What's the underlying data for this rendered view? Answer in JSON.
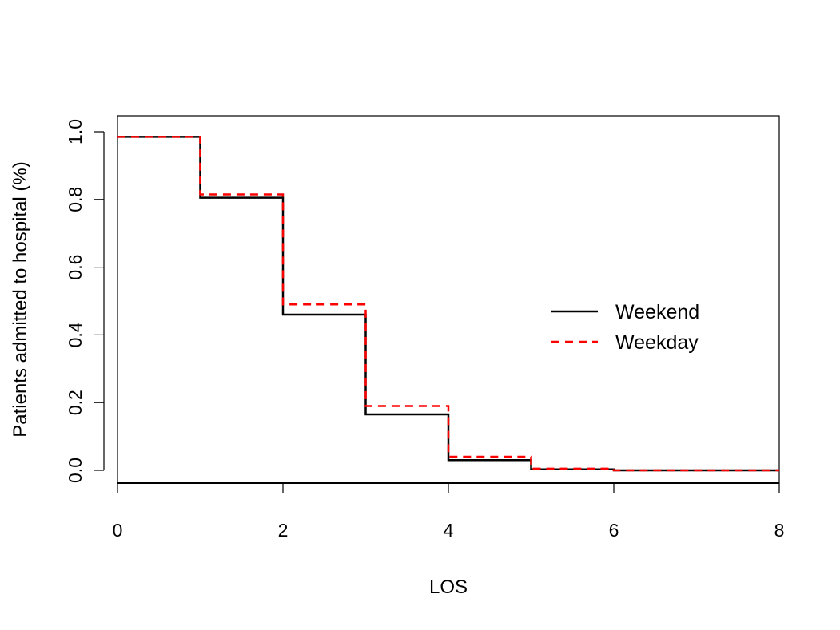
{
  "chart_data": {
    "type": "line",
    "step": true,
    "xlabel": "LOS",
    "ylabel": "Patients admitted to hospital (%)",
    "xlim": [
      0,
      8
    ],
    "ylim": [
      0,
      1
    ],
    "x_ticks": [
      "0",
      "2",
      "4",
      "6",
      "8"
    ],
    "y_ticks": [
      "0.0",
      "0.2",
      "0.4",
      "0.6",
      "0.8",
      "1.0"
    ],
    "grid": false,
    "legend_position": "right",
    "series": [
      {
        "name": "Weekend",
        "color": "#000000",
        "dash": "solid",
        "x": [
          0,
          1,
          2,
          3,
          4,
          5,
          6,
          8
        ],
        "y": [
          0.985,
          0.805,
          0.46,
          0.165,
          0.03,
          0.003,
          0.0,
          0.0
        ]
      },
      {
        "name": "Weekday",
        "color": "#ff0000",
        "dash": "dashed",
        "x": [
          0,
          1,
          2,
          3,
          4,
          5,
          6,
          8
        ],
        "y": [
          0.985,
          0.815,
          0.49,
          0.19,
          0.04,
          0.005,
          0.0,
          0.0
        ]
      }
    ]
  }
}
